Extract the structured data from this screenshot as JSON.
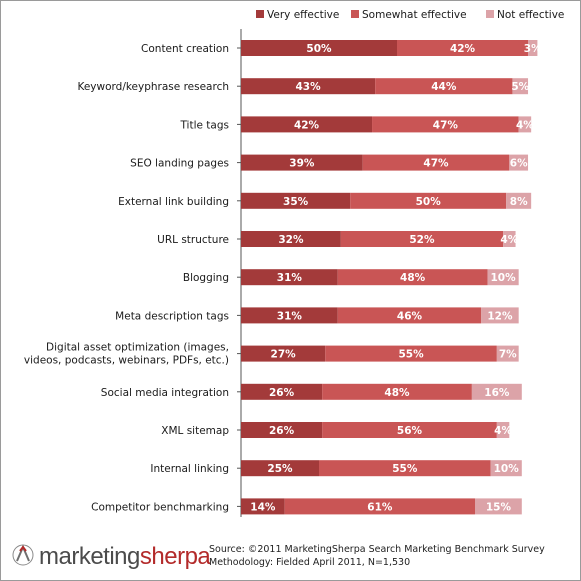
{
  "chart_data": {
    "type": "bar",
    "stacked": true,
    "orientation": "horizontal",
    "categories": [
      "Content creation",
      "Keyword/keyphrase research",
      "Title tags",
      "SEO landing pages",
      "External link building",
      "URL structure",
      "Blogging",
      "Meta description tags",
      "Digital asset optimization  (images, videos, podcasts, webinars, PDFs, etc.)",
      "Social media integration",
      "XML sitemap",
      "Internal linking",
      "Competitor benchmarking"
    ],
    "series": [
      {
        "name": "Very effective",
        "color": "#a33a3a",
        "values": [
          50,
          43,
          42,
          39,
          35,
          32,
          31,
          31,
          27,
          26,
          26,
          25,
          14
        ]
      },
      {
        "name": "Somewhat effective",
        "color": "#c95555",
        "values": [
          42,
          44,
          47,
          47,
          50,
          52,
          48,
          46,
          55,
          48,
          56,
          55,
          61
        ]
      },
      {
        "name": "Not effective",
        "color": "#dca3a8",
        "values": [
          3,
          5,
          4,
          6,
          8,
          4,
          10,
          12,
          7,
          16,
          4,
          10,
          15
        ]
      }
    ],
    "value_suffix": "%",
    "xlim": [
      0,
      100
    ],
    "legend": "top-right",
    "grid": false
  },
  "footer": {
    "logo_light": "marketing",
    "logo_bold": "sherpa",
    "source_line1": "Source: ©2011 MarketingSherpa Search Marketing Benchmark Survey",
    "source_line2": "Methodology: Fielded April 2011, N=1,530"
  }
}
